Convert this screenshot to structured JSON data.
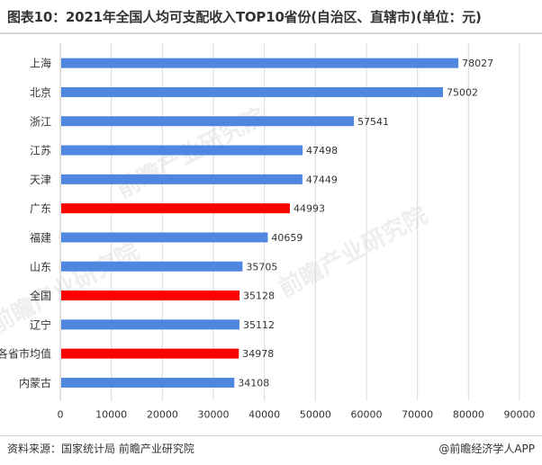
{
  "title": "图表10：2021年全国人均可支配收入TOP10省份(自治区、直辖市)(单位：元)",
  "source": "资料来源：国家统计局 前瞻产业研究院",
  "brand": "@前瞻经济学人APP",
  "watermark": "前瞻产业研究院",
  "colors": {
    "normal": "#4f86e0",
    "highlight": "#ff0000",
    "grid": "#d9d9d9"
  },
  "chart_data": {
    "type": "bar",
    "orientation": "horizontal",
    "categories": [
      "上海",
      "北京",
      "浙江",
      "江苏",
      "天津",
      "广东",
      "福建",
      "山东",
      "全国",
      "辽宁",
      "各省市均值",
      "内蒙古"
    ],
    "values": [
      78027,
      75002,
      57541,
      47498,
      47449,
      44993,
      40659,
      35705,
      35128,
      35112,
      34978,
      34108
    ],
    "highlighted": [
      "广东",
      "全国",
      "各省市均值"
    ],
    "xlim": [
      0,
      90000
    ],
    "xticks": [
      0,
      10000,
      20000,
      30000,
      40000,
      50000,
      60000,
      70000,
      80000,
      90000
    ],
    "grid": "vertical",
    "data_labels": true
  }
}
